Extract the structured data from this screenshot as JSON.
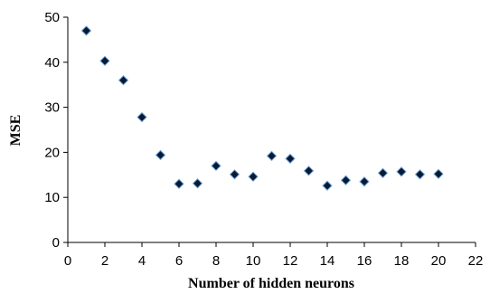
{
  "chart_data": {
    "type": "scatter",
    "title": "",
    "xlabel": "Number of hidden neurons",
    "ylabel": "MSE",
    "xlim": [
      0,
      22
    ],
    "ylim": [
      0,
      50
    ],
    "xticks": [
      "0",
      "2",
      "4",
      "6",
      "8",
      "10",
      "12",
      "14",
      "16",
      "18",
      "20",
      "22"
    ],
    "yticks": [
      "0",
      "10",
      "20",
      "30",
      "40",
      "50"
    ],
    "grid": false,
    "legend": "none",
    "marker": "diamond",
    "marker_color": "#0b1a33",
    "marker_edge_color": "#6fa8dc",
    "series": [
      {
        "x": [
          1,
          2,
          3,
          4,
          5,
          6,
          7,
          8,
          9,
          10,
          11,
          12,
          13,
          14,
          15,
          16,
          17,
          18,
          19,
          20
        ],
        "y": [
          47.0,
          40.3,
          36.0,
          27.8,
          19.4,
          13.0,
          13.1,
          17.0,
          15.1,
          14.6,
          19.2,
          18.6,
          15.9,
          12.6,
          13.8,
          13.5,
          15.4,
          15.7,
          15.1,
          15.2
        ]
      }
    ]
  }
}
